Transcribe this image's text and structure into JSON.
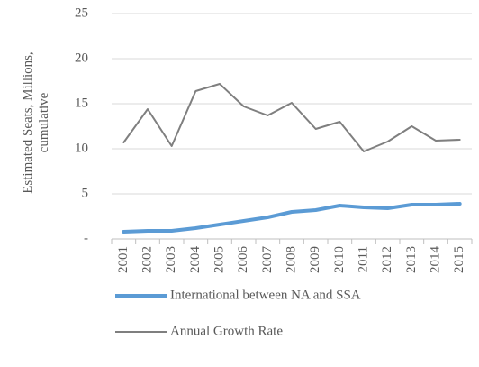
{
  "chart_data": {
    "type": "line",
    "ylabel": "Estimated Seats, Millions, cumulative",
    "categories": [
      "2001",
      "2002",
      "2003",
      "2004",
      "2005",
      "2006",
      "2007",
      "2008",
      "2009",
      "2010",
      "2011",
      "2012",
      "2013",
      "2014",
      "2015"
    ],
    "series": [
      {
        "name": "International between NA and SSA",
        "color": "#5b9bd5",
        "width": 4,
        "values": [
          0.8,
          0.9,
          0.9,
          1.2,
          1.6,
          2.0,
          2.4,
          3.0,
          3.2,
          3.7,
          3.5,
          3.4,
          3.8,
          3.8,
          3.9
        ]
      },
      {
        "name": "Annual Growth Rate",
        "color": "#7f7f7f",
        "width": 2,
        "values": [
          10.7,
          14.4,
          10.3,
          16.4,
          17.2,
          14.7,
          13.7,
          15.1,
          12.2,
          13.0,
          9.7,
          10.8,
          12.5,
          10.9,
          11.0
        ]
      }
    ],
    "ylim": [
      0,
      25
    ],
    "yticks": [
      {
        "value": 0,
        "label": "-"
      },
      5,
      10,
      15,
      20,
      25
    ],
    "grid": true,
    "legend": "bottom"
  }
}
